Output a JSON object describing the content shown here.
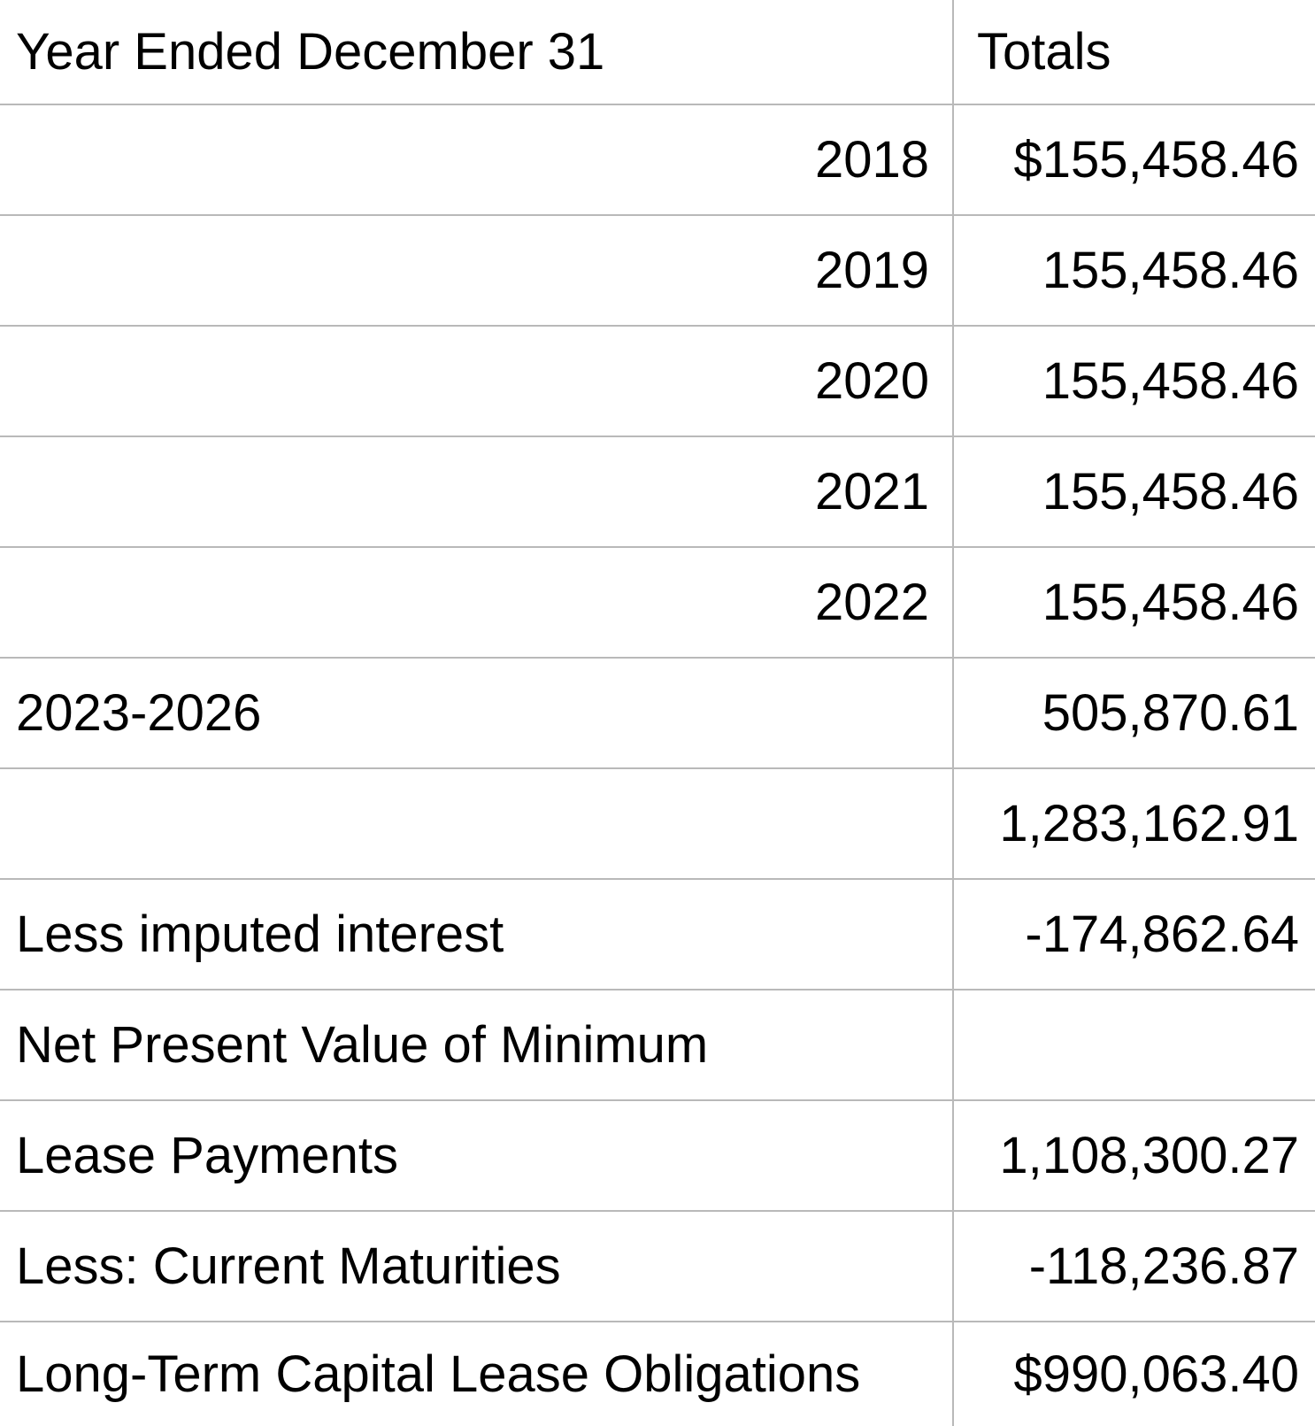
{
  "table": {
    "header": {
      "label": "Year Ended December 31",
      "value": "Totals"
    },
    "rows": [
      {
        "label": "2018",
        "value": "$155,458.46",
        "label_align": "right"
      },
      {
        "label": "2019",
        "value": "155,458.46",
        "label_align": "right"
      },
      {
        "label": "2020",
        "value": "155,458.46",
        "label_align": "right"
      },
      {
        "label": "2021",
        "value": "155,458.46",
        "label_align": "right"
      },
      {
        "label": "2022",
        "value": "155,458.46",
        "label_align": "right"
      },
      {
        "label": "2023-2026",
        "value": "505,870.61",
        "label_align": "left"
      },
      {
        "label": "",
        "value": "1,283,162.91",
        "label_align": "left"
      },
      {
        "label": "Less imputed interest",
        "value": "-174,862.64",
        "label_align": "left"
      },
      {
        "label": "Net Present Value of Minimum",
        "value": "",
        "label_align": "left"
      },
      {
        "label": "Lease Payments",
        "value": "1,108,300.27",
        "label_align": "left"
      },
      {
        "label": "Less: Current Maturities",
        "value": "-118,236.87",
        "label_align": "left"
      },
      {
        "label": "Long-Term Capital Lease Obligations",
        "value": "$990,063.40",
        "label_align": "left"
      }
    ]
  }
}
